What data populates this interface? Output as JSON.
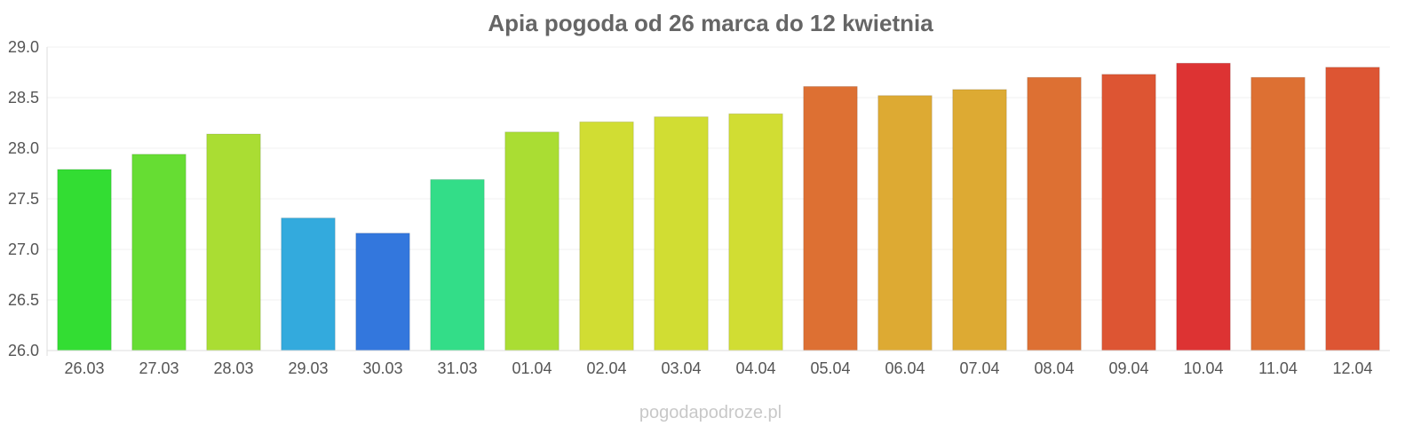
{
  "chart_data": {
    "type": "bar",
    "title": "Apia pogoda od 26 marca do 12 kwietnia",
    "xlabel": "",
    "ylabel": "",
    "ylim": [
      26.0,
      29.0
    ],
    "y_ticks": [
      "26.0",
      "26.5",
      "27.0",
      "27.5",
      "28.0",
      "28.5",
      "29.0"
    ],
    "grid": true,
    "categories": [
      "26.03",
      "27.03",
      "28.03",
      "29.03",
      "30.03",
      "31.03",
      "01.04",
      "02.04",
      "03.04",
      "04.04",
      "05.04",
      "06.04",
      "07.04",
      "08.04",
      "09.04",
      "10.04",
      "11.04",
      "12.04"
    ],
    "values": [
      27.79,
      27.94,
      28.14,
      27.31,
      27.16,
      27.69,
      28.16,
      28.26,
      28.31,
      28.34,
      28.61,
      28.52,
      28.58,
      28.7,
      28.73,
      28.84,
      28.7,
      28.8
    ],
    "colors": [
      "#33dd33",
      "#66dd33",
      "#aadd33",
      "#33aadd",
      "#3377dd",
      "#33dd88",
      "#aadd33",
      "#d1dd33",
      "#d1dd33",
      "#d1dd33",
      "#dd7033",
      "#ddaa33",
      "#ddaa33",
      "#dd7033",
      "#dd5533",
      "#dd3333",
      "#dd7033",
      "#dd5533"
    ]
  },
  "watermark": "pogodapodroze.pl"
}
